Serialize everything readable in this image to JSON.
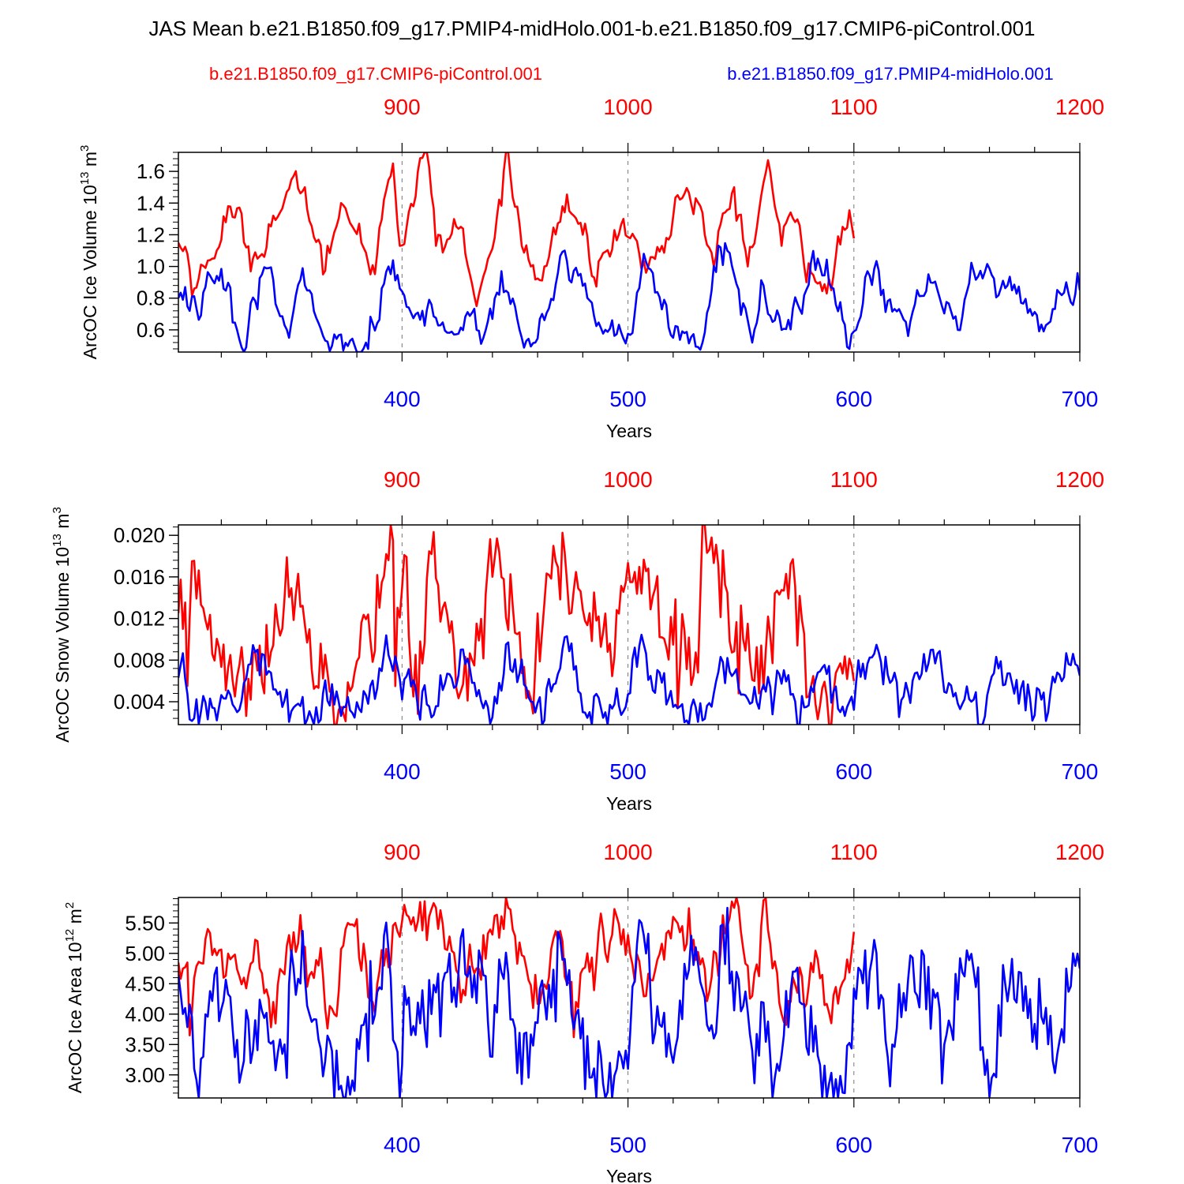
{
  "title": "JAS Mean b.e21.B1850.f09_g17.PMIP4-midHolo.001-b.e21.B1850.f09_g17.CMIP6-piControl.001",
  "legend": {
    "red_label": "b.e21.B1850.f09_g17.CMIP6-piControl.001",
    "blue_label": "b.e21.B1850.f09_g17.PMIP4-midHolo.001"
  },
  "colors": {
    "red": "#ff0000",
    "blue": "#0000ff",
    "axis": "#000000",
    "grid": "#777777"
  },
  "chart_data": [
    {
      "type": "line",
      "ylabel_main": "ArcOC Ice Volume 10",
      "ylabel_exp": "13",
      "ylabel_unit": " m",
      "ylabel_unit_exp": "3",
      "xlabel": "Years",
      "xlim_blue": [
        301,
        700
      ],
      "xlim_red": [
        801,
        1200
      ],
      "x_ticks_blue": [
        "400",
        "500",
        "600",
        "700"
      ],
      "x_ticks_red": [
        "900",
        "1000",
        "1100",
        "1200"
      ],
      "ylim": [
        0.46,
        1.72
      ],
      "y_ticks": [
        "0.6",
        "0.8",
        "1.0",
        "1.2",
        "1.4",
        "1.6"
      ],
      "y_minor_step": 0.04,
      "red_end": 600,
      "series": [
        {
          "name": "b.e21.B1850.f09_g17.CMIP6-piControl.001",
          "color": "red",
          "mean": 1.22,
          "sd": 0.07,
          "smooth": 0.62,
          "anchors": [
            [
              301,
              1.15
            ],
            [
              305,
              1.08
            ],
            [
              308,
              0.86
            ],
            [
              315,
              1.04
            ],
            [
              323,
              1.38
            ],
            [
              334,
              1.05
            ],
            [
              343,
              1.32
            ],
            [
              357,
              1.5
            ],
            [
              365,
              0.95
            ],
            [
              373,
              1.4
            ],
            [
              381,
              1.27
            ],
            [
              386,
              0.95
            ],
            [
              396,
              1.65
            ],
            [
              399,
              1.13
            ],
            [
              407,
              1.6
            ],
            [
              411,
              1.72
            ],
            [
              415,
              1.13
            ],
            [
              426,
              1.25
            ],
            [
              433,
              0.75
            ],
            [
              441,
              1.18
            ],
            [
              447,
              1.72
            ],
            [
              453,
              1.13
            ],
            [
              463,
              1.0
            ],
            [
              471,
              1.38
            ],
            [
              480,
              1.2
            ],
            [
              485,
              0.93
            ],
            [
              498,
              1.3
            ],
            [
              508,
              0.96
            ],
            [
              517,
              1.18
            ],
            [
              522,
              1.45
            ],
            [
              530,
              1.43
            ],
            [
              538,
              1.0
            ],
            [
              547,
              1.5
            ],
            [
              553,
              1.0
            ],
            [
              562,
              1.67
            ],
            [
              568,
              1.13
            ],
            [
              574,
              1.28
            ],
            [
              580,
              1.02
            ],
            [
              590,
              0.85
            ],
            [
              595,
              1.25
            ],
            [
              601,
              1.25
            ]
          ]
        },
        {
          "name": "b.e21.B1850.f09_g17.PMIP4-midHolo.001",
          "color": "blue",
          "mean": 0.78,
          "sd": 0.07,
          "smooth": 0.55,
          "anchors": [
            [
              301,
              0.8
            ],
            [
              304,
              0.87
            ],
            [
              306,
              0.72
            ],
            [
              319,
              0.91
            ],
            [
              329,
              0.49
            ],
            [
              341,
              0.99
            ],
            [
              350,
              0.55
            ],
            [
              357,
              0.88
            ],
            [
              374,
              0.47
            ],
            [
              385,
              0.48
            ],
            [
              394,
              1.0
            ],
            [
              409,
              0.72
            ],
            [
              433,
              0.6
            ],
            [
              436,
              0.55
            ],
            [
              444,
              0.97
            ],
            [
              453,
              0.55
            ],
            [
              459,
              0.52
            ],
            [
              472,
              1.1
            ],
            [
              490,
              0.6
            ],
            [
              502,
              0.58
            ],
            [
              507,
              1.08
            ],
            [
              520,
              0.55
            ],
            [
              533,
              0.52
            ],
            [
              541,
              1.12
            ],
            [
              556,
              0.6
            ],
            [
              560,
              0.88
            ],
            [
              568,
              0.6
            ],
            [
              585,
              1.0
            ],
            [
              598,
              0.48
            ],
            [
              601,
              0.6
            ],
            [
              606,
              0.97
            ],
            [
              623,
              0.65
            ],
            [
              633,
              0.95
            ],
            [
              646,
              0.6
            ],
            [
              653,
              0.97
            ],
            [
              670,
              0.85
            ],
            [
              685,
              0.63
            ],
            [
              694,
              0.9
            ],
            [
              700,
              0.85
            ]
          ]
        }
      ]
    },
    {
      "type": "line",
      "ylabel_main": "ArcOC Snow Volume 10",
      "ylabel_exp": "13",
      "ylabel_unit": " m",
      "ylabel_unit_exp": "3",
      "xlabel": "Years",
      "xlim_blue": [
        301,
        700
      ],
      "xlim_red": [
        801,
        1200
      ],
      "x_ticks_blue": [
        "400",
        "500",
        "600",
        "700"
      ],
      "x_ticks_red": [
        "900",
        "1000",
        "1100",
        "1200"
      ],
      "ylim": [
        0.0018,
        0.021
      ],
      "y_ticks": [
        "0.004",
        "0.008",
        "0.012",
        "0.016",
        "0.020"
      ],
      "y_minor_step": 0.0008,
      "red_end": 600,
      "series": [
        {
          "name": "b.e21.B1850.f09_g17.CMIP6-piControl.001",
          "color": "red",
          "mean": 0.0105,
          "sd": 0.0025,
          "smooth": 0.1,
          "anchors": [
            [
              301,
              0.0125
            ],
            [
              303,
              0.011
            ],
            [
              305,
              0.0055
            ],
            [
              307,
              0.0175
            ],
            [
              326,
              0.0045
            ],
            [
              336,
              0.007
            ],
            [
              354,
              0.0163
            ],
            [
              362,
              0.0055
            ],
            [
              379,
              0.0068
            ],
            [
              396,
              0.0195
            ],
            [
              397,
              0.0055
            ],
            [
              401,
              0.0181
            ],
            [
              405,
              0.0045
            ],
            [
              413,
              0.0182
            ],
            [
              426,
              0.005
            ],
            [
              441,
              0.0178
            ],
            [
              457,
              0.0043
            ],
            [
              468,
              0.0175
            ],
            [
              491,
              0.0088
            ],
            [
              501,
              0.0155
            ],
            [
              509,
              0.0168
            ],
            [
              531,
              0.0068
            ],
            [
              533,
              0.021
            ],
            [
              556,
              0.006
            ],
            [
              573,
              0.0177
            ],
            [
              580,
              0.0045
            ],
            [
              601,
              0.0072
            ]
          ]
        },
        {
          "name": "b.e21.B1850.f09_g17.PMIP4-midHolo.001",
          "color": "blue",
          "mean": 0.0055,
          "sd": 0.0012,
          "smooth": 0.2,
          "anchors": [
            [
              301,
              0.0063
            ],
            [
              304,
              0.0062
            ],
            [
              306,
              0.0023
            ],
            [
              322,
              0.0043
            ],
            [
              327,
              0.003
            ],
            [
              336,
              0.009
            ],
            [
              347,
              0.0035
            ],
            [
              374,
              0.0035
            ],
            [
              385,
              0.0038
            ],
            [
              394,
              0.0085
            ],
            [
              413,
              0.0025
            ],
            [
              426,
              0.009
            ],
            [
              440,
              0.0025
            ],
            [
              446,
              0.0095
            ],
            [
              463,
              0.0022
            ],
            [
              472,
              0.0102
            ],
            [
              480,
              0.003
            ],
            [
              499,
              0.0035
            ],
            [
              503,
              0.0092
            ],
            [
              520,
              0.0035
            ],
            [
              533,
              0.0022
            ],
            [
              541,
              0.0083
            ],
            [
              554,
              0.0038
            ],
            [
              566,
              0.007
            ],
            [
              579,
              0.0035
            ],
            [
              584,
              0.0068
            ],
            [
              598,
              0.004
            ],
            [
              603,
              0.0064
            ],
            [
              609,
              0.0086
            ],
            [
              622,
              0.0045
            ],
            [
              635,
              0.009
            ],
            [
              644,
              0.0045
            ],
            [
              658,
              0.0026
            ],
            [
              664,
              0.0072
            ],
            [
              680,
              0.0027
            ],
            [
              690,
              0.0068
            ],
            [
              697,
              0.0086
            ],
            [
              700,
              0.0065
            ]
          ]
        }
      ]
    },
    {
      "type": "line",
      "ylabel_main": "ArcOC Ice Area 10",
      "ylabel_exp": "12",
      "ylabel_unit": " m",
      "ylabel_unit_exp": "2",
      "xlabel": "Years",
      "xlim_blue": [
        301,
        700
      ],
      "xlim_red": [
        801,
        1200
      ],
      "x_ticks_blue": [
        "400",
        "500",
        "600",
        "700"
      ],
      "x_ticks_red": [
        "900",
        "1000",
        "1100",
        "1200"
      ],
      "ylim": [
        2.62,
        5.92
      ],
      "y_ticks": [
        "3.00",
        "3.50",
        "4.00",
        "4.50",
        "5.00",
        "5.50"
      ],
      "y_minor_step": 0.1,
      "red_end": 600,
      "series": [
        {
          "name": "b.e21.B1850.f09_g17.CMIP6-piControl.001",
          "color": "red",
          "mean": 4.9,
          "sd": 0.28,
          "smooth": 0.35,
          "anchors": [
            [
              301,
              4.85
            ],
            [
              303,
              4.75
            ],
            [
              305,
              4.85
            ],
            [
              306,
              3.65
            ],
            [
              314,
              5.4
            ],
            [
              319,
              5.05
            ],
            [
              330,
              4.6
            ],
            [
              336,
              5.2
            ],
            [
              343,
              4.2
            ],
            [
              350,
              5.3
            ],
            [
              363,
              4.8
            ],
            [
              370,
              4.0
            ],
            [
              376,
              5.5
            ],
            [
              387,
              4.2
            ],
            [
              397,
              5.5
            ],
            [
              403,
              5.6
            ],
            [
              415,
              5.75
            ],
            [
              427,
              4.4
            ],
            [
              447,
              5.75
            ],
            [
              458,
              4.1
            ],
            [
              471,
              5.2
            ],
            [
              477,
              4.2
            ],
            [
              482,
              5.0
            ],
            [
              500,
              5.3
            ],
            [
              508,
              4.3
            ],
            [
              520,
              5.6
            ],
            [
              537,
              4.6
            ],
            [
              547,
              5.75
            ],
            [
              555,
              4.3
            ],
            [
              561,
              5.9
            ],
            [
              568,
              4.0
            ],
            [
              584,
              4.9
            ],
            [
              590,
              3.85
            ],
            [
              597,
              4.9
            ],
            [
              601,
              5.05
            ]
          ]
        },
        {
          "name": "b.e21.B1850.f09_g17.PMIP4-midHolo.001",
          "color": "blue",
          "mean": 4.2,
          "sd": 0.42,
          "smooth": 0.1,
          "anchors": [
            [
              301,
              4.65
            ],
            [
              304,
              4.1
            ],
            [
              307,
              3.95
            ],
            [
              312,
              3.3
            ],
            [
              317,
              4.65
            ],
            [
              329,
              3.05
            ],
            [
              335,
              3.9
            ],
            [
              349,
              2.95
            ],
            [
              351,
              5.05
            ],
            [
              374,
              2.63
            ],
            [
              394,
              5.05
            ],
            [
              397,
              3.5
            ],
            [
              434,
              5.05
            ],
            [
              440,
              3.3
            ],
            [
              443,
              4.9
            ],
            [
              453,
              2.85
            ],
            [
              470,
              5.25
            ],
            [
              479,
              3.6
            ],
            [
              489,
              2.85
            ],
            [
              500,
              3.1
            ],
            [
              504,
              5.15
            ],
            [
              517,
              3.3
            ],
            [
              530,
              5.1
            ],
            [
              538,
              3.6
            ],
            [
              541,
              5.45
            ],
            [
              555,
              3.4
            ],
            [
              559,
              4.2
            ],
            [
              565,
              2.95
            ],
            [
              573,
              4.7
            ],
            [
              589,
              2.85
            ],
            [
              596,
              2.7
            ],
            [
              601,
              4.25
            ],
            [
              605,
              5.05
            ],
            [
              617,
              3.5
            ],
            [
              630,
              5.05
            ],
            [
              640,
              3.5
            ],
            [
              650,
              5.05
            ],
            [
              661,
              2.95
            ],
            [
              667,
              4.5
            ],
            [
              691,
              3.55
            ],
            [
              697,
              5.0
            ],
            [
              700,
              4.75
            ]
          ]
        }
      ]
    }
  ]
}
